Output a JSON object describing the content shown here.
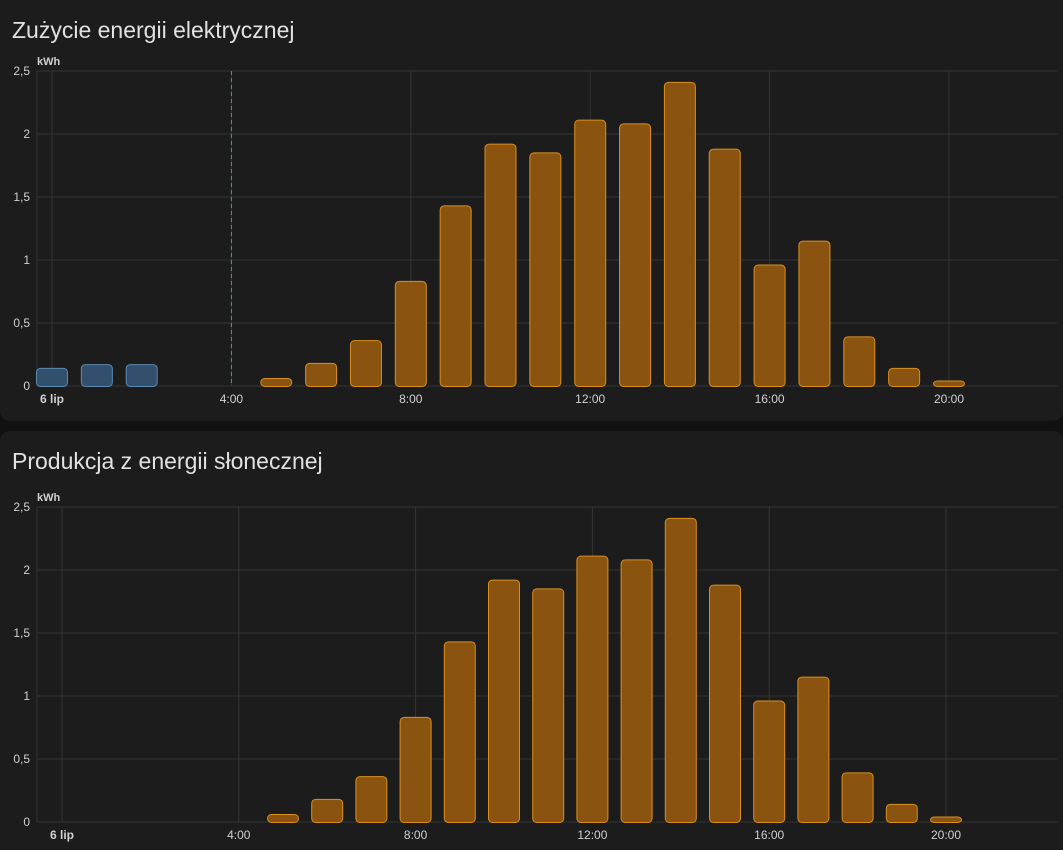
{
  "colors": {
    "solar_fill": "#8a5410",
    "solar_stroke": "#d98f1e",
    "grid_fill": "#32506b",
    "grid_stroke": "#5c8ab3",
    "now_line": "#2e9ad6",
    "gridline": "#353535"
  },
  "chart_data": [
    {
      "type": "bar",
      "title": "Zużycie energii elektrycznej",
      "ylabel": "kWh",
      "ylim": [
        0,
        2.5
      ],
      "yticks": [
        "0",
        "0,5",
        "1",
        "1,5",
        "2",
        "2,5"
      ],
      "x_unit": "hour",
      "xlim": [
        0,
        22.5
      ],
      "xticks": [
        {
          "hour": 0,
          "label": "6 lip",
          "bold": true
        },
        {
          "hour": 4,
          "label": "4:00"
        },
        {
          "hour": 8,
          "label": "8:00"
        },
        {
          "hour": 12,
          "label": "12:00"
        },
        {
          "hour": 16,
          "label": "16:00"
        },
        {
          "hour": 20,
          "label": "20:00"
        }
      ],
      "now_marker_hour": 4,
      "grid": true,
      "series": [
        {
          "source": "grid",
          "points": [
            {
              "hour": 0,
              "value": 0.14
            },
            {
              "hour": 1,
              "value": 0.17
            },
            {
              "hour": 2,
              "value": 0.17
            }
          ]
        },
        {
          "source": "solar",
          "points": [
            {
              "hour": 5,
              "value": 0.06
            },
            {
              "hour": 6,
              "value": 0.18
            },
            {
              "hour": 7,
              "value": 0.36
            },
            {
              "hour": 8,
              "value": 0.83
            },
            {
              "hour": 9,
              "value": 1.43
            },
            {
              "hour": 10,
              "value": 1.92
            },
            {
              "hour": 11,
              "value": 1.85
            },
            {
              "hour": 12,
              "value": 2.11
            },
            {
              "hour": 13,
              "value": 2.08
            },
            {
              "hour": 14,
              "value": 2.41
            },
            {
              "hour": 15,
              "value": 1.88
            },
            {
              "hour": 16,
              "value": 0.96
            },
            {
              "hour": 17,
              "value": 1.15
            },
            {
              "hour": 18,
              "value": 0.39
            },
            {
              "hour": 19,
              "value": 0.14
            },
            {
              "hour": 20,
              "value": 0.04
            }
          ]
        }
      ]
    },
    {
      "type": "bar",
      "title": "Produkcja z energii słonecznej",
      "ylabel": "kWh",
      "ylim": [
        0,
        2.5
      ],
      "yticks": [
        "0",
        "0,5",
        "1",
        "1,5",
        "2",
        "2,5"
      ],
      "x_unit": "hour",
      "xlim": [
        0,
        22.5
      ],
      "xticks": [
        {
          "hour": 0,
          "label": "6 lip",
          "bold": true
        },
        {
          "hour": 4,
          "label": "4:00"
        },
        {
          "hour": 8,
          "label": "8:00"
        },
        {
          "hour": 12,
          "label": "12:00"
        },
        {
          "hour": 16,
          "label": "16:00"
        },
        {
          "hour": 20,
          "label": "20:00"
        }
      ],
      "grid": true,
      "series": [
        {
          "source": "solar",
          "points": [
            {
              "hour": 5,
              "value": 0.06
            },
            {
              "hour": 6,
              "value": 0.18
            },
            {
              "hour": 7,
              "value": 0.36
            },
            {
              "hour": 8,
              "value": 0.83
            },
            {
              "hour": 9,
              "value": 1.43
            },
            {
              "hour": 10,
              "value": 1.92
            },
            {
              "hour": 11,
              "value": 1.85
            },
            {
              "hour": 12,
              "value": 2.11
            },
            {
              "hour": 13,
              "value": 2.08
            },
            {
              "hour": 14,
              "value": 2.41
            },
            {
              "hour": 15,
              "value": 1.88
            },
            {
              "hour": 16,
              "value": 0.96
            },
            {
              "hour": 17,
              "value": 1.15
            },
            {
              "hour": 18,
              "value": 0.39
            },
            {
              "hour": 19,
              "value": 0.14
            },
            {
              "hour": 20,
              "value": 0.04
            }
          ]
        }
      ]
    }
  ]
}
